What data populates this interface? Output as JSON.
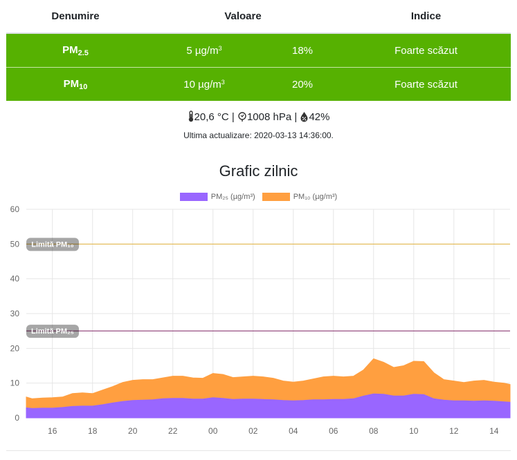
{
  "table": {
    "headers": [
      "Denumire",
      "Valoare",
      "Indice"
    ],
    "rows": [
      {
        "pollutant": "PM",
        "pollutant_sub": "2.5",
        "value": "5 µg/m",
        "value_sup": "3",
        "percent": "18%",
        "index": "Foarte scăzut"
      },
      {
        "pollutant": "PM",
        "pollutant_sub": "10",
        "value": "10 µg/m",
        "value_sup": "3",
        "percent": "20%",
        "index": "Foarte scăzut"
      }
    ],
    "row_color": "#56b101"
  },
  "weather": {
    "temperature": "20,6 °C",
    "pressure": "1008 hPa",
    "humidity": "42%",
    "separator": "|",
    "icons": [
      "thermometer-icon",
      "pressure-icon",
      "humidity-icon"
    ]
  },
  "updated": "Ultima actualizare: 2020-03-13 14:36:00.",
  "chart_title": "Grafic zilnic",
  "chart_data": {
    "type": "area",
    "x_ticks": [
      "16",
      "18",
      "20",
      "22",
      "00",
      "02",
      "04",
      "06",
      "08",
      "10",
      "12",
      "14"
    ],
    "x_range_hours": [
      14.7,
      38.8
    ],
    "ylim": [
      0,
      60
    ],
    "y_ticks": [
      0,
      10,
      20,
      30,
      40,
      50,
      60
    ],
    "grid": true,
    "legend_position": "top",
    "series": [
      {
        "name": "PM₂₅ (µg/m³)",
        "color": "#9966ff",
        "points": [
          [
            14.7,
            2.9
          ],
          [
            15.0,
            2.7
          ],
          [
            15.5,
            2.8
          ],
          [
            16.0,
            2.8
          ],
          [
            16.5,
            3.0
          ],
          [
            17.0,
            3.3
          ],
          [
            17.5,
            3.4
          ],
          [
            18.0,
            3.4
          ],
          [
            18.5,
            3.8
          ],
          [
            19.0,
            4.3
          ],
          [
            19.5,
            4.7
          ],
          [
            20.0,
            5.0
          ],
          [
            20.5,
            5.1
          ],
          [
            21.0,
            5.2
          ],
          [
            21.5,
            5.5
          ],
          [
            22.0,
            5.6
          ],
          [
            22.5,
            5.6
          ],
          [
            23.0,
            5.4
          ],
          [
            23.5,
            5.4
          ],
          [
            24.0,
            5.8
          ],
          [
            24.5,
            5.6
          ],
          [
            25.0,
            5.3
          ],
          [
            25.5,
            5.4
          ],
          [
            26.0,
            5.4
          ],
          [
            26.5,
            5.3
          ],
          [
            27.0,
            5.2
          ],
          [
            27.5,
            5.0
          ],
          [
            28.0,
            4.9
          ],
          [
            28.5,
            5.0
          ],
          [
            29.0,
            5.2
          ],
          [
            29.5,
            5.2
          ],
          [
            30.0,
            5.3
          ],
          [
            30.5,
            5.3
          ],
          [
            31.0,
            5.5
          ],
          [
            31.5,
            6.3
          ],
          [
            32.0,
            6.9
          ],
          [
            32.5,
            6.8
          ],
          [
            33.0,
            6.3
          ],
          [
            33.5,
            6.3
          ],
          [
            34.0,
            6.8
          ],
          [
            34.5,
            6.7
          ],
          [
            35.0,
            5.5
          ],
          [
            35.5,
            5.1
          ],
          [
            36.0,
            4.9
          ],
          [
            36.5,
            4.9
          ],
          [
            37.0,
            4.8
          ],
          [
            37.5,
            4.9
          ],
          [
            38.0,
            4.8
          ],
          [
            38.5,
            4.6
          ],
          [
            38.8,
            4.5
          ]
        ]
      },
      {
        "name": "PM₁₀ (µg/m³)",
        "color": "#ff9f40",
        "points": [
          [
            14.7,
            6.0
          ],
          [
            15.0,
            5.5
          ],
          [
            15.5,
            5.7
          ],
          [
            16.0,
            5.8
          ],
          [
            16.5,
            6.0
          ],
          [
            17.0,
            7.0
          ],
          [
            17.5,
            7.2
          ],
          [
            18.0,
            7.0
          ],
          [
            18.5,
            8.0
          ],
          [
            19.0,
            9.0
          ],
          [
            19.5,
            10.2
          ],
          [
            20.0,
            10.8
          ],
          [
            20.5,
            11.0
          ],
          [
            21.0,
            11.0
          ],
          [
            21.5,
            11.5
          ],
          [
            22.0,
            12.0
          ],
          [
            22.5,
            12.0
          ],
          [
            23.0,
            11.5
          ],
          [
            23.5,
            11.4
          ],
          [
            24.0,
            12.8
          ],
          [
            24.5,
            12.5
          ],
          [
            25.0,
            11.6
          ],
          [
            25.5,
            11.8
          ],
          [
            26.0,
            12.0
          ],
          [
            26.5,
            11.8
          ],
          [
            27.0,
            11.4
          ],
          [
            27.5,
            10.6
          ],
          [
            28.0,
            10.3
          ],
          [
            28.5,
            10.6
          ],
          [
            29.0,
            11.2
          ],
          [
            29.5,
            11.8
          ],
          [
            30.0,
            12.0
          ],
          [
            30.5,
            11.8
          ],
          [
            31.0,
            12.0
          ],
          [
            31.5,
            13.8
          ],
          [
            32.0,
            17.0
          ],
          [
            32.5,
            16.0
          ],
          [
            33.0,
            14.5
          ],
          [
            33.5,
            15.0
          ],
          [
            34.0,
            16.3
          ],
          [
            34.5,
            16.2
          ],
          [
            35.0,
            13.0
          ],
          [
            35.5,
            11.0
          ],
          [
            36.0,
            10.6
          ],
          [
            36.5,
            10.2
          ],
          [
            37.0,
            10.6
          ],
          [
            37.5,
            10.8
          ],
          [
            38.0,
            10.3
          ],
          [
            38.5,
            10.0
          ],
          [
            38.8,
            9.6
          ]
        ]
      }
    ],
    "annotations": [
      {
        "label": "Limită PM₁₀",
        "y": 50,
        "color": "#e2b23c"
      },
      {
        "label": "Limită PM₂₅",
        "y": 25,
        "color": "#7b1f5f"
      }
    ]
  }
}
